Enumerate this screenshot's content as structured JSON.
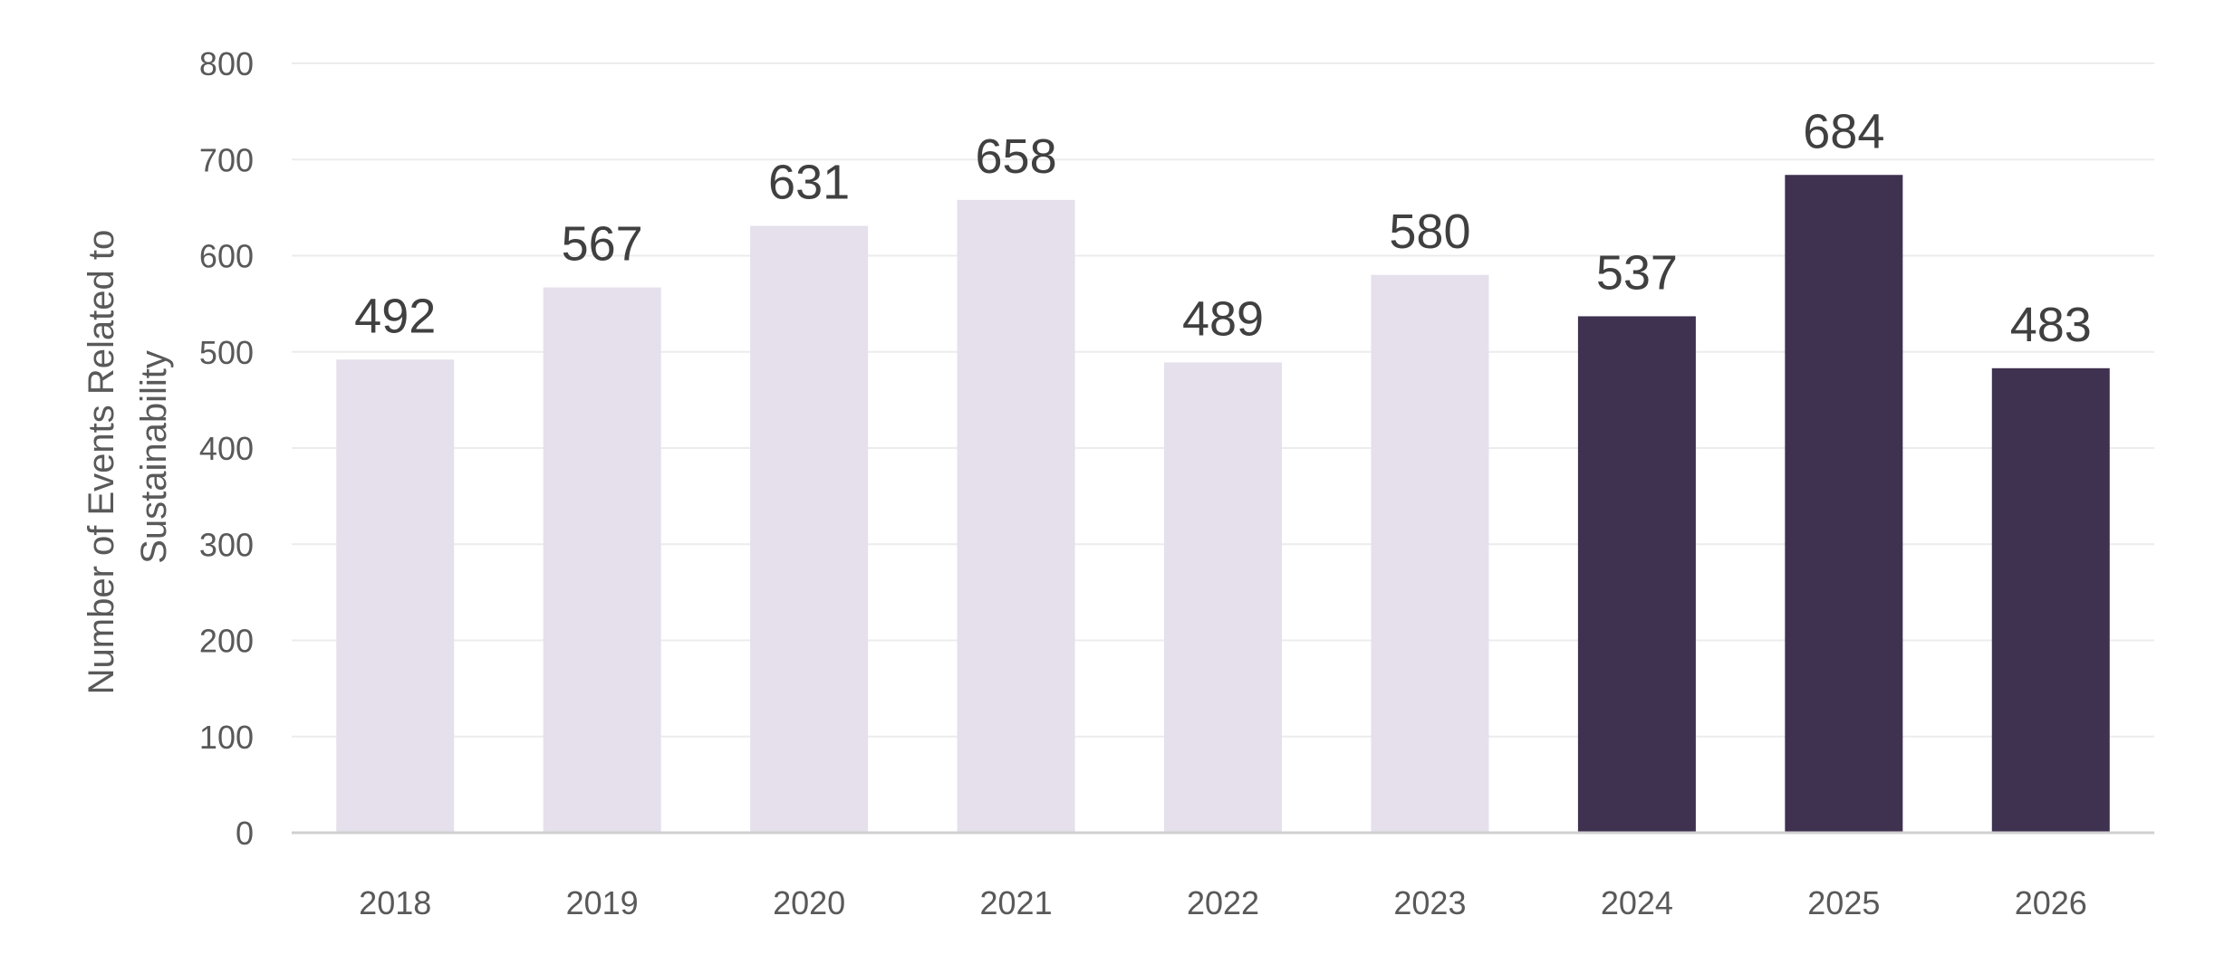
{
  "chart_data": {
    "type": "bar",
    "categories": [
      "2018",
      "2019",
      "2020",
      "2021",
      "2022",
      "2023",
      "2024",
      "2025",
      "2026"
    ],
    "values": [
      492,
      567,
      631,
      658,
      489,
      580,
      537,
      684,
      483
    ],
    "bar_colors": [
      "#e5e0ec",
      "#e5e0ec",
      "#e5e0ec",
      "#e5e0ec",
      "#e5e0ec",
      "#e5e0ec",
      "#3f3150",
      "#3f3150",
      "#3f3150"
    ],
    "title": "",
    "xlabel": "",
    "ylabel": "Number of Events Related to Sustainability",
    "ylabel_lines": [
      "Number of Events Related to",
      "Sustainability"
    ],
    "ylim": [
      0,
      800
    ],
    "yticks": [
      0,
      100,
      200,
      300,
      400,
      500,
      600,
      700,
      800
    ],
    "grid": true,
    "legend": "none"
  }
}
